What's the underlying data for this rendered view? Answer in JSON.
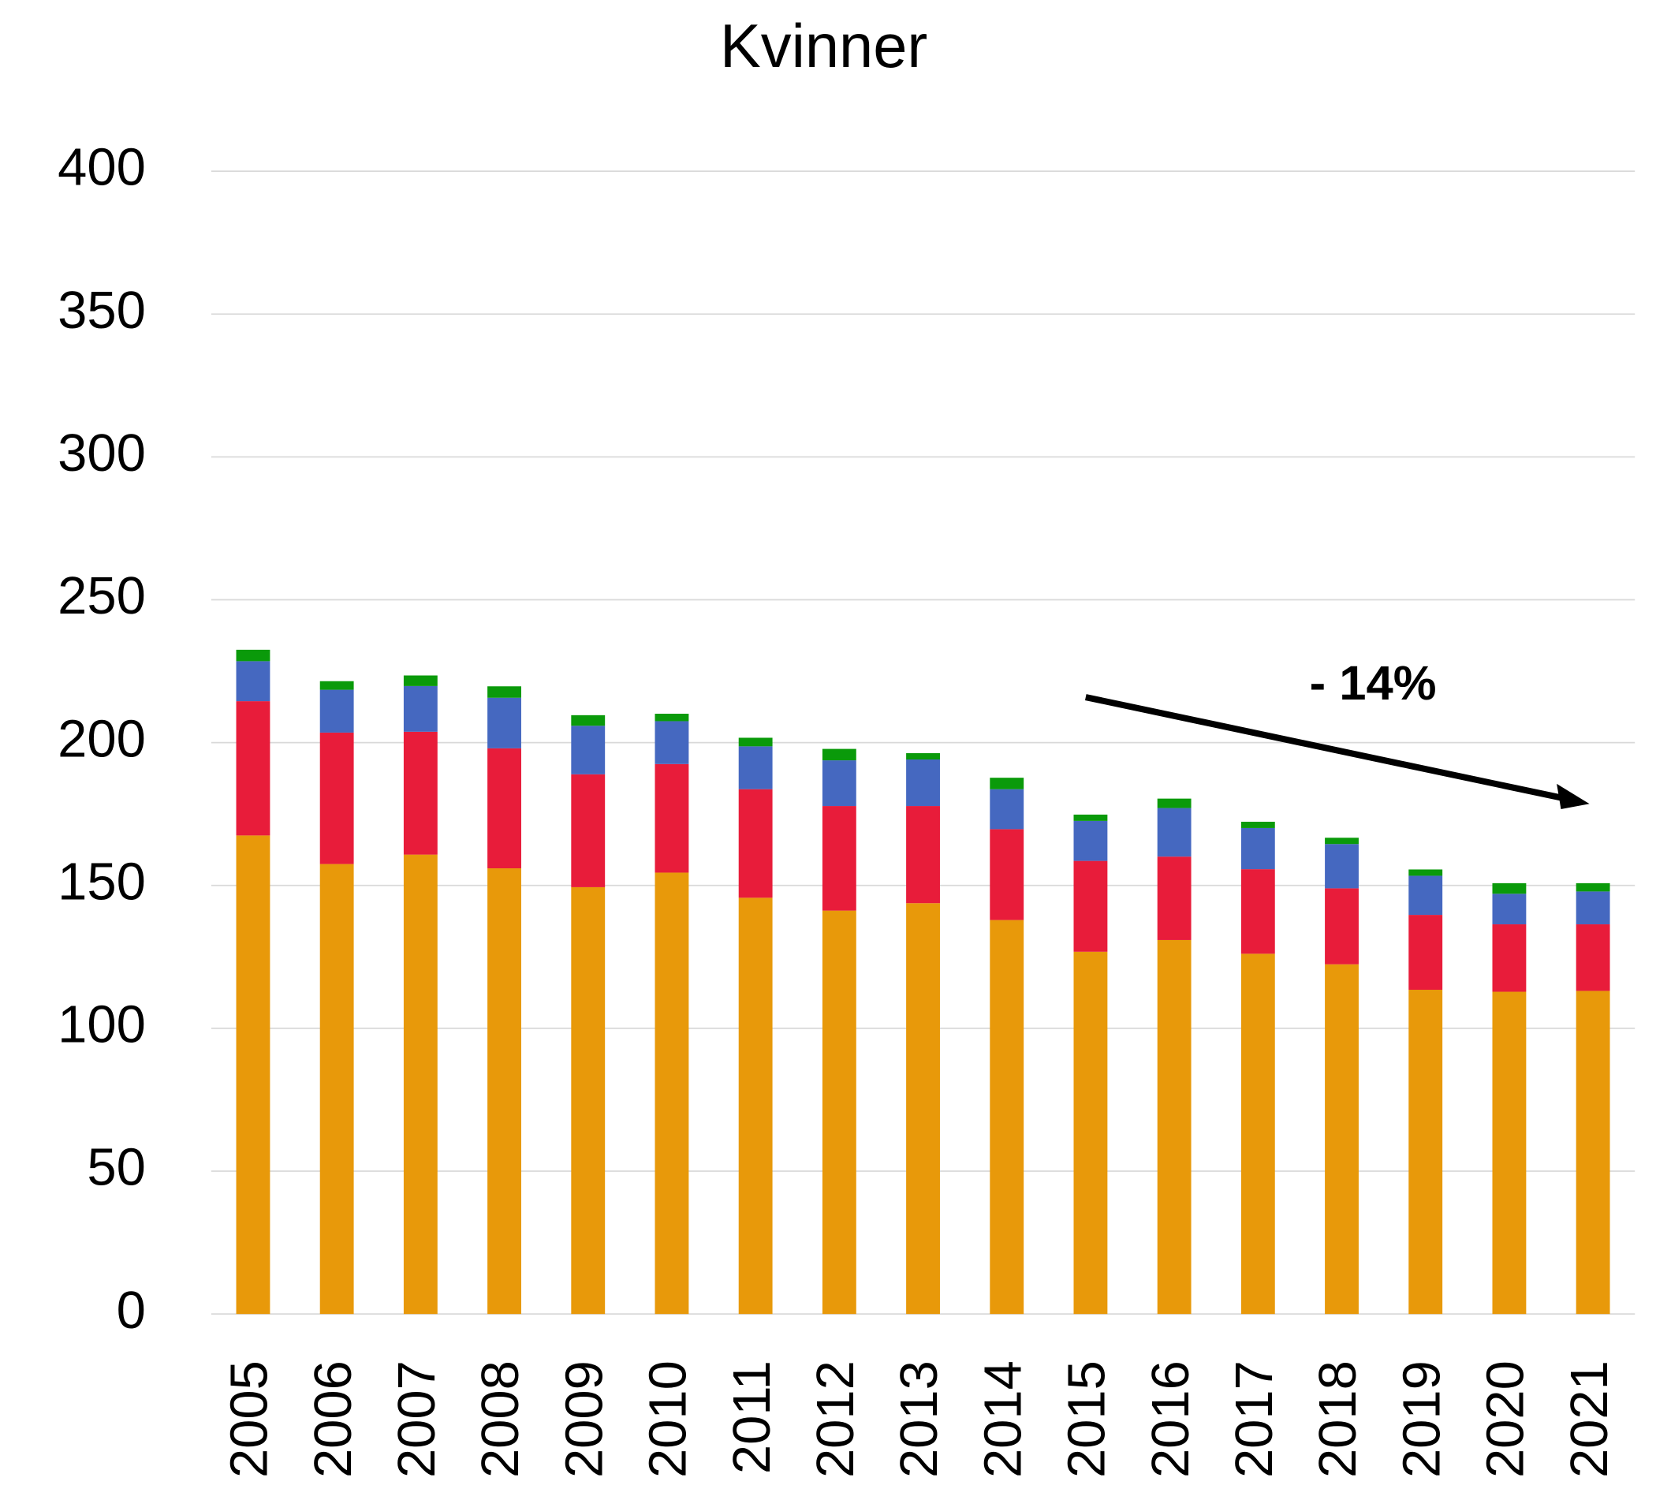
{
  "chart_data": {
    "type": "stacked_bar",
    "title": "Kvinner",
    "categories": [
      "2005",
      "2006",
      "2007",
      "2008",
      "2009",
      "2010",
      "2011",
      "2012",
      "2013",
      "2014",
      "2015",
      "2016",
      "2017",
      "2018",
      "2019",
      "2020",
      "2021"
    ],
    "series": [
      {
        "color": "#e8990a",
        "values": [
          167.5,
          157.5,
          160.8,
          156,
          149.4,
          154.5,
          145.7,
          141.2,
          143.8,
          137.9,
          126.8,
          130.9,
          126.1,
          122.4,
          113.5,
          112.8,
          113.1
        ]
      },
      {
        "color": "#e81c3a",
        "values": [
          47,
          46,
          43,
          42,
          39.5,
          38,
          38,
          36.6,
          34,
          31.8,
          31.8,
          29.2,
          29.6,
          26.6,
          26.2,
          23.6,
          23.3
        ]
      },
      {
        "color": "#4568c0",
        "values": [
          14,
          15,
          16,
          17.7,
          17,
          15,
          15,
          16,
          16.3,
          14,
          14,
          17,
          14.4,
          15.5,
          13.7,
          10.7,
          11.5
        ]
      },
      {
        "color": "#0a9a0a",
        "values": [
          4,
          3,
          3.7,
          4,
          3.7,
          2.6,
          3,
          4,
          2.2,
          4,
          2.2,
          3.3,
          2.2,
          2.2,
          2.2,
          3.7,
          2.9
        ]
      }
    ],
    "ylim": [
      0,
      400
    ],
    "yticks": [
      0,
      50,
      100,
      150,
      200,
      250,
      300,
      350,
      400
    ],
    "grid": true,
    "annotation": "- 14%"
  }
}
